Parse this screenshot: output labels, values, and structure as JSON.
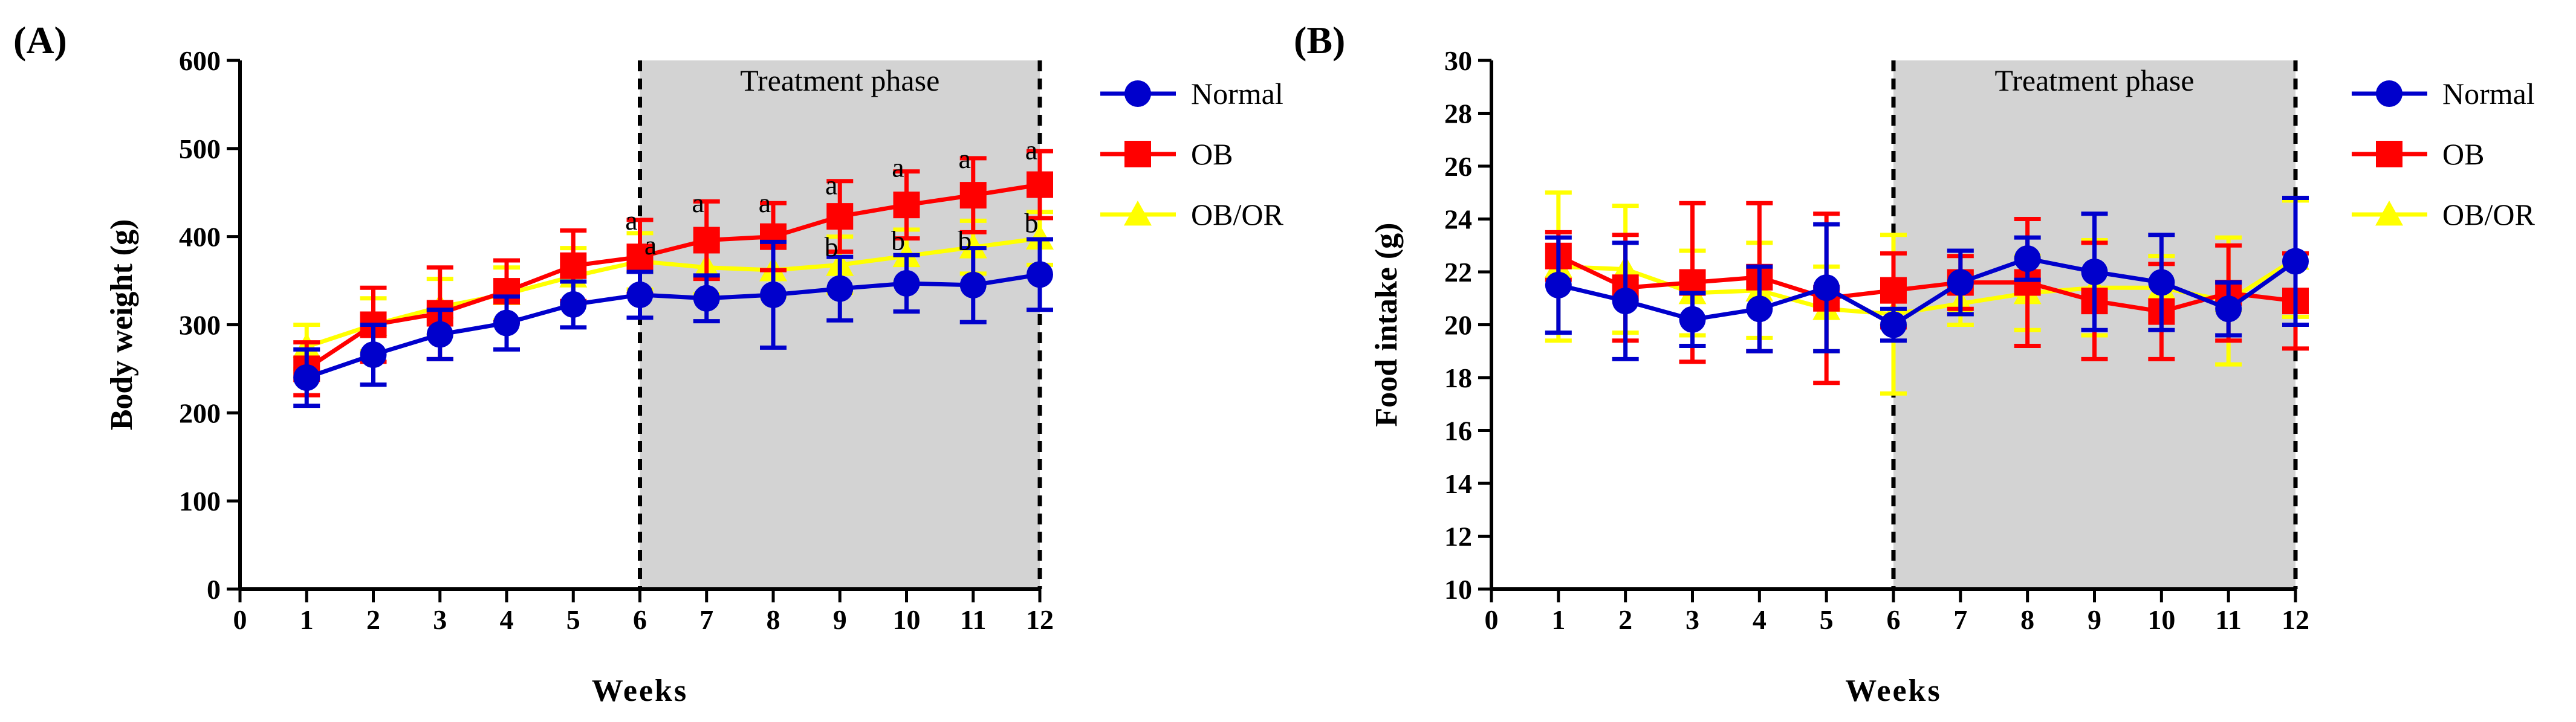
{
  "colors": {
    "normal": "#0000cc",
    "ob": "#ff0000",
    "obor": "#ffff00",
    "phase_fill": "#d3d3d3"
  },
  "chart_data": [
    {
      "type": "line",
      "panel_label": "(A)",
      "xlabel": "Weeks",
      "ylabel": "Body weight (g)",
      "xlim": [
        0,
        12
      ],
      "ylim": [
        0,
        600
      ],
      "xticks": [
        0,
        1,
        2,
        3,
        4,
        5,
        6,
        7,
        8,
        9,
        10,
        11,
        12
      ],
      "yticks": [
        0,
        100,
        200,
        300,
        400,
        500,
        600
      ],
      "shaded_region": {
        "x_start": 6,
        "x_end": 12,
        "label": "Treatment phase"
      },
      "legend_position": "right",
      "x": [
        1,
        2,
        3,
        4,
        5,
        6,
        7,
        8,
        9,
        10,
        11,
        12
      ],
      "series": [
        {
          "name": "OB/OR",
          "color_key": "obor",
          "marker": "triangle",
          "values": [
            275,
            300,
            320,
            335,
            355,
            372,
            365,
            362,
            368,
            378,
            388,
            398
          ],
          "errors": [
            25,
            30,
            32,
            30,
            32,
            32,
            30,
            30,
            32,
            30,
            30,
            30
          ]
        },
        {
          "name": "OB",
          "color_key": "ob",
          "marker": "square",
          "values": [
            250,
            300,
            313,
            338,
            367,
            377,
            396,
            400,
            423,
            436,
            447,
            459
          ],
          "errors": [
            30,
            42,
            52,
            35,
            40,
            42,
            44,
            38,
            40,
            38,
            42,
            38
          ]
        },
        {
          "name": "Normal",
          "color_key": "normal",
          "marker": "circle",
          "values": [
            240,
            266,
            289,
            302,
            323,
            334,
            330,
            334,
            341,
            347,
            345,
            357
          ],
          "errors": [
            32,
            34,
            28,
            30,
            26,
            26,
            26,
            60,
            36,
            32,
            42,
            40
          ]
        }
      ],
      "annotations": [
        {
          "x": 6,
          "y": 408,
          "text": "a"
        },
        {
          "x": 6,
          "y": 380,
          "text": "a",
          "dx": 0.16
        },
        {
          "x": 7,
          "y": 428,
          "text": "a"
        },
        {
          "x": 8,
          "y": 428,
          "text": "a"
        },
        {
          "x": 9,
          "y": 448,
          "text": "a"
        },
        {
          "x": 9,
          "y": 378,
          "text": "b"
        },
        {
          "x": 10,
          "y": 468,
          "text": "a"
        },
        {
          "x": 10,
          "y": 385,
          "text": "b"
        },
        {
          "x": 11,
          "y": 478,
          "text": "a"
        },
        {
          "x": 11,
          "y": 385,
          "text": "b"
        },
        {
          "x": 12,
          "y": 488,
          "text": "a"
        },
        {
          "x": 12,
          "y": 405,
          "text": "b"
        }
      ]
    },
    {
      "type": "line",
      "panel_label": "(B)",
      "xlabel": "Weeks",
      "ylabel": "Food intake (g)",
      "xlim": [
        0,
        12
      ],
      "ylim": [
        10,
        30
      ],
      "xticks": [
        0,
        1,
        2,
        3,
        4,
        5,
        6,
        7,
        8,
        9,
        10,
        11,
        12
      ],
      "yticks": [
        10,
        12,
        14,
        16,
        18,
        20,
        22,
        24,
        26,
        28,
        30
      ],
      "shaded_region": {
        "x_start": 6,
        "x_end": 12,
        "label": "Treatment phase"
      },
      "legend_position": "right",
      "x": [
        1,
        2,
        3,
        4,
        5,
        6,
        7,
        8,
        9,
        10,
        11,
        12
      ],
      "series": [
        {
          "name": "OB/OR",
          "color_key": "obor",
          "marker": "triangle",
          "values": [
            22.2,
            22.1,
            21.2,
            21.3,
            20.6,
            20.4,
            20.8,
            21.2,
            21.4,
            21.4,
            20.9,
            22.5
          ],
          "errors": [
            2.8,
            2.4,
            1.6,
            1.8,
            1.6,
            3.0,
            0.8,
            1.4,
            1.8,
            1.2,
            2.4,
            2.2
          ]
        },
        {
          "name": "OB",
          "color_key": "ob",
          "marker": "square",
          "values": [
            22.6,
            21.4,
            21.6,
            21.8,
            21.0,
            21.3,
            21.6,
            21.6,
            20.9,
            20.5,
            21.2,
            20.9
          ],
          "errors": [
            0.9,
            2.0,
            3.0,
            2.8,
            3.2,
            1.4,
            1.0,
            2.4,
            2.2,
            1.8,
            1.8,
            1.8
          ]
        },
        {
          "name": "Normal",
          "color_key": "normal",
          "marker": "circle",
          "values": [
            21.5,
            20.9,
            20.2,
            20.6,
            21.4,
            20.0,
            21.6,
            22.5,
            22.0,
            21.6,
            20.6,
            22.4
          ],
          "errors": [
            1.8,
            2.2,
            1.0,
            1.6,
            2.4,
            0.6,
            1.2,
            0.8,
            2.2,
            1.8,
            1.0,
            2.4
          ]
        }
      ],
      "annotations": []
    }
  ]
}
